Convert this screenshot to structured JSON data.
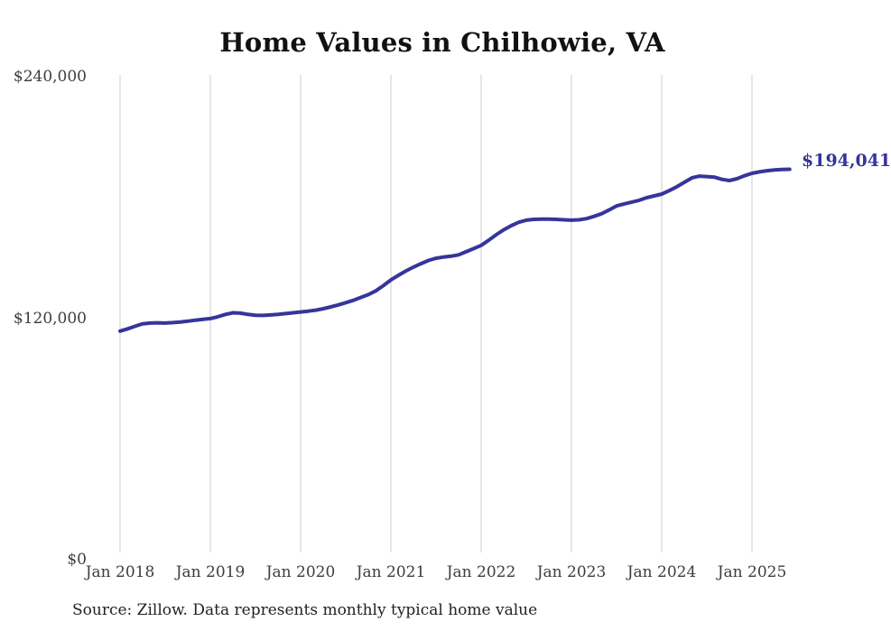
{
  "page": {
    "title": "Home Values in Chilhowie, VA",
    "source_note": "Source: Zillow. Data represents monthly typical home value"
  },
  "colors": {
    "line": "#35359B",
    "grid": "#CCCCCC",
    "title_text": "#111111",
    "axis_text": "#3D3D3D",
    "source_text": "#222222",
    "end_label_text": "#35359B",
    "background": "#FFFFFF"
  },
  "chart_data": {
    "type": "line",
    "title": "Home Values in Chilhowie, VA",
    "xlabel": "",
    "ylabel": "",
    "ylim": [
      0,
      240000
    ],
    "grid": "vertical-only",
    "legend": "none",
    "end_label": "$194,041",
    "end_value": 194041,
    "y_ticks": [
      {
        "value": 240000,
        "label": "$240,000"
      },
      {
        "value": 120000,
        "label": "$120,000"
      },
      {
        "value": 0,
        "label": "$0"
      }
    ],
    "x_ticks": [
      {
        "month": 0,
        "label": "Jan 2018"
      },
      {
        "month": 12,
        "label": "Jan 2019"
      },
      {
        "month": 24,
        "label": "Jan 2020"
      },
      {
        "month": 36,
        "label": "Jan 2021"
      },
      {
        "month": 48,
        "label": "Jan 2022"
      },
      {
        "month": 60,
        "label": "Jan 2023"
      },
      {
        "month": 72,
        "label": "Jan 2024"
      },
      {
        "month": 84,
        "label": "Jan 2025"
      }
    ],
    "x": [
      "2018-01",
      "2018-02",
      "2018-03",
      "2018-04",
      "2018-05",
      "2018-06",
      "2018-07",
      "2018-08",
      "2018-09",
      "2018-10",
      "2018-11",
      "2018-12",
      "2019-01",
      "2019-02",
      "2019-03",
      "2019-04",
      "2019-05",
      "2019-06",
      "2019-07",
      "2019-08",
      "2019-09",
      "2019-10",
      "2019-11",
      "2019-12",
      "2020-01",
      "2020-02",
      "2020-03",
      "2020-04",
      "2020-05",
      "2020-06",
      "2020-07",
      "2020-08",
      "2020-09",
      "2020-10",
      "2020-11",
      "2020-12",
      "2021-01",
      "2021-02",
      "2021-03",
      "2021-04",
      "2021-05",
      "2021-06",
      "2021-07",
      "2021-08",
      "2021-09",
      "2021-10",
      "2021-11",
      "2021-12",
      "2022-01",
      "2022-02",
      "2022-03",
      "2022-04",
      "2022-05",
      "2022-06",
      "2022-07",
      "2022-08",
      "2022-09",
      "2022-10",
      "2022-11",
      "2022-12",
      "2023-01",
      "2023-02",
      "2023-03",
      "2023-04",
      "2023-05",
      "2023-06",
      "2023-07",
      "2023-08",
      "2023-09",
      "2023-10",
      "2023-11",
      "2023-12",
      "2024-01",
      "2024-02",
      "2024-03",
      "2024-04",
      "2024-05",
      "2024-06",
      "2024-07",
      "2024-08",
      "2024-09",
      "2024-10",
      "2024-11",
      "2024-12",
      "2025-01",
      "2025-02",
      "2025-03",
      "2025-04",
      "2025-05",
      "2025-06"
    ],
    "values": [
      113600,
      114700,
      116000,
      117200,
      117600,
      117700,
      117600,
      117800,
      118100,
      118500,
      119000,
      119400,
      119800,
      120700,
      121900,
      122700,
      122500,
      121900,
      121500,
      121400,
      121600,
      121900,
      122300,
      122700,
      123100,
      123500,
      124000,
      124700,
      125600,
      126600,
      127700,
      128900,
      130300,
      131700,
      133600,
      136200,
      139000,
      141300,
      143500,
      145400,
      147100,
      148700,
      149800,
      150400,
      150800,
      151500,
      153000,
      154600,
      156200,
      158700,
      161500,
      163900,
      166000,
      167700,
      168700,
      169100,
      169200,
      169200,
      169100,
      168900,
      168700,
      168900,
      169500,
      170600,
      171900,
      173800,
      175800,
      176800,
      177700,
      178600,
      179900,
      180800,
      181700,
      183400,
      185300,
      187500,
      189700,
      190600,
      190400,
      190100,
      189000,
      188400,
      189300,
      190800,
      192000,
      192700,
      193300,
      193700,
      193900,
      194041
    ]
  }
}
